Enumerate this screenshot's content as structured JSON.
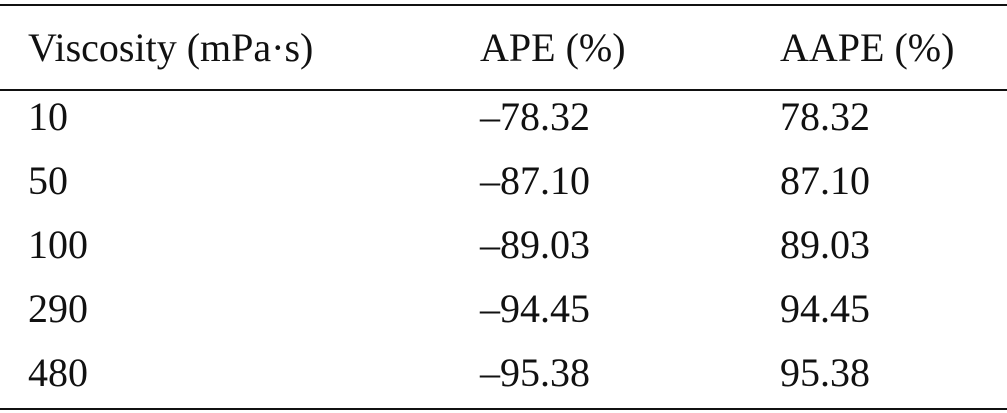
{
  "table": {
    "headers": [
      "Viscosity (mPa·s)",
      "APE (%)",
      "AAPE (%)"
    ],
    "rows": [
      [
        "10",
        "–78.32",
        "78.32"
      ],
      [
        "50",
        "–87.10",
        "87.10"
      ],
      [
        "100",
        "–89.03",
        "89.03"
      ],
      [
        "290",
        "–94.45",
        "94.45"
      ],
      [
        "480",
        "–95.38",
        "95.38"
      ]
    ]
  }
}
